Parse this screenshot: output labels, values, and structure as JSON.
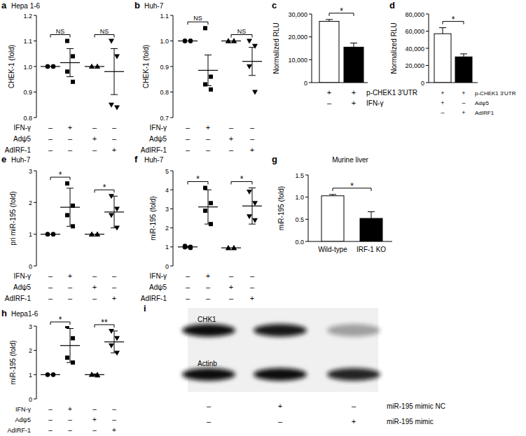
{
  "chart_data": [
    {
      "type": "dot",
      "panel": "a",
      "title": "Hepa 1-6",
      "y_label": "CHEK-1 (fold)",
      "ylim": [
        0.8,
        1.2
      ],
      "yticks": [
        0.8,
        0.9,
        {
          "value": 1,
          "label": "1.0"
        },
        1.1,
        1.2
      ],
      "series": [
        {
          "marker": "circle",
          "values": [
            1,
            1,
            1,
            1
          ],
          "mean": 1,
          "error": 0
        },
        {
          "marker": "square",
          "values": [
            1.1,
            1.04,
            0.98,
            0.94
          ],
          "mean": 1.015,
          "error": 0.055
        },
        {
          "marker": "triangle",
          "values": [
            1,
            1,
            1,
            1
          ],
          "mean": 1,
          "error": 0
        },
        {
          "marker": "triangle-down",
          "values": [
            1.1,
            1.04,
            0.85,
            0.84
          ],
          "mean": 0.98,
          "error": 0.09
        }
      ],
      "comparisons": [
        {
          "groups": [
            0,
            1
          ],
          "label": "NS"
        },
        {
          "groups": [
            2,
            3
          ],
          "label": "NS"
        }
      ],
      "conditions": [
        {
          "name": "IFN-γ",
          "signs": [
            "–",
            "+",
            "–",
            "–"
          ]
        },
        {
          "name": "Adψ5",
          "signs": [
            "–",
            "–",
            "+",
            "–"
          ]
        },
        {
          "name": "AdIRF-1",
          "signs": [
            "–",
            "–",
            "–",
            "+"
          ]
        }
      ]
    },
    {
      "type": "dot",
      "panel": "b",
      "title": "Huh-7",
      "y_label": "CHEK-1 (fold)",
      "ylim": [
        0.7,
        1.1
      ],
      "yticks": [
        0.7,
        0.8,
        0.9,
        {
          "value": 1,
          "label": "1.0"
        },
        1.1
      ],
      "series": [
        {
          "marker": "circle",
          "values": [
            1,
            1,
            1,
            1
          ],
          "mean": 1,
          "error": 0
        },
        {
          "marker": "square",
          "values": [
            1.05,
            0.86,
            0.83,
            0.81
          ],
          "mean": 0.885,
          "error": 0.06
        },
        {
          "marker": "triangle",
          "values": [
            1,
            1,
            1,
            1
          ],
          "mean": 1,
          "error": 0
        },
        {
          "marker": "triangle-down",
          "values": [
            1,
            0.98,
            0.9,
            0.8
          ],
          "mean": 0.92,
          "error": 0.055
        }
      ],
      "comparisons": [
        {
          "groups": [
            0,
            1
          ],
          "label": "NS"
        },
        {
          "groups": [
            2,
            3
          ],
          "label": "NS"
        }
      ],
      "conditions": [
        {
          "name": "IFN-γ",
          "signs": [
            "–",
            "+",
            "–",
            "–"
          ]
        },
        {
          "name": "Adψ5",
          "signs": [
            "–",
            "–",
            "+",
            "–"
          ]
        },
        {
          "name": "AdIRF-1",
          "signs": [
            "–",
            "–",
            "–",
            "+"
          ]
        }
      ]
    },
    {
      "type": "bar",
      "panel": "c",
      "y_label": "Normalized RLU",
      "ylim": [
        0,
        30000
      ],
      "yticks": [
        0,
        {
          "value": 10000,
          "label": "10,000"
        },
        {
          "value": 20000,
          "label": "20,000"
        },
        {
          "value": 30000,
          "label": "30,000"
        }
      ],
      "values": [
        26800,
        15500
      ],
      "errors": [
        800,
        1800
      ],
      "colors": [
        "#ffffff",
        "#000000"
      ],
      "comparisons": [
        {
          "groups": [
            0,
            1
          ],
          "label": "*"
        }
      ],
      "conditions": [
        {
          "name": "p-CHEK1 3'UTR",
          "signs": [
            "+",
            "+"
          ]
        },
        {
          "name": "IFN-γ",
          "signs": [
            "–",
            "+"
          ]
        }
      ]
    },
    {
      "type": "bar",
      "panel": "d",
      "y_label": "Normalized RLU",
      "ylim": [
        0,
        80000
      ],
      "yticks": [
        0,
        {
          "value": 20000,
          "label": "20,000"
        },
        {
          "value": 40000,
          "label": "40,000"
        },
        {
          "value": 60000,
          "label": "60,000"
        },
        {
          "value": 80000,
          "label": "80,000"
        }
      ],
      "values": [
        57000,
        30000
      ],
      "errors": [
        7000,
        3500
      ],
      "colors": [
        "#ffffff",
        "#000000"
      ],
      "comparisons": [
        {
          "groups": [
            0,
            1
          ],
          "label": "*"
        }
      ],
      "conditions": [
        {
          "name": "p-CHEK1 3'UTR",
          "signs": [
            "+",
            "+"
          ]
        },
        {
          "name": "Adψ5",
          "signs": [
            "+",
            "–"
          ]
        },
        {
          "name": "AdIRF1",
          "signs": [
            "–",
            "+"
          ]
        }
      ]
    },
    {
      "type": "dot",
      "panel": "e",
      "title": "Huh-7",
      "y_label": "pri miR-195 (fold)",
      "ylim": [
        0,
        3
      ],
      "yticks": [
        0,
        1,
        2,
        3
      ],
      "series": [
        {
          "marker": "circle",
          "values": [
            1,
            1,
            1,
            1
          ],
          "mean": 1,
          "error": 0
        },
        {
          "marker": "square",
          "values": [
            2.6,
            1.9,
            1.6,
            1.25
          ],
          "mean": 1.85,
          "error": 0.6
        },
        {
          "marker": "triangle",
          "values": [
            1,
            1,
            1,
            1
          ],
          "mean": 1,
          "error": 0
        },
        {
          "marker": "triangle-down",
          "values": [
            2.2,
            1.8,
            1.6,
            1.2
          ],
          "mean": 1.7,
          "error": 0.5
        }
      ],
      "comparisons": [
        {
          "groups": [
            0,
            1
          ],
          "label": "*"
        },
        {
          "groups": [
            2,
            3
          ],
          "label": "*"
        }
      ],
      "conditions": [
        {
          "name": "IFN-γ",
          "signs": [
            "–",
            "+",
            "–",
            "–"
          ]
        },
        {
          "name": "Adψ5",
          "signs": [
            "–",
            "–",
            "+",
            "–"
          ]
        },
        {
          "name": "AdIRF-1",
          "signs": [
            "–",
            "–",
            "–",
            "+"
          ]
        }
      ]
    },
    {
      "type": "dot",
      "panel": "f",
      "title": "Huh-7",
      "y_label": "miR-195 (fold)",
      "ylim": [
        0,
        5
      ],
      "yticks": [
        0,
        1,
        2,
        3,
        4,
        5
      ],
      "series": [
        {
          "marker": "circle",
          "values": [
            1.05,
            1,
            0.98,
            0.95
          ],
          "mean": 1,
          "error": 0.05
        },
        {
          "marker": "square",
          "values": [
            4.1,
            3.3,
            2.9,
            2.2
          ],
          "mean": 3.1,
          "error": 0.9
        },
        {
          "marker": "triangle",
          "values": [
            0.95,
            0.95,
            0.95,
            0.95
          ],
          "mean": 0.95,
          "error": 0
        },
        {
          "marker": "triangle-down",
          "values": [
            3.9,
            3.3,
            2.6,
            2.4
          ],
          "mean": 3.15,
          "error": 0.95
        }
      ],
      "comparisons": [
        {
          "groups": [
            0,
            1
          ],
          "label": "*"
        },
        {
          "groups": [
            2,
            3
          ],
          "label": "*"
        }
      ],
      "conditions": [
        {
          "name": "IFN-γ",
          "signs": [
            "–",
            "+",
            "–",
            "–"
          ]
        },
        {
          "name": "Adψ5",
          "signs": [
            "–",
            "–",
            "+",
            "–"
          ]
        },
        {
          "name": "AdIRF-1",
          "signs": [
            "–",
            "–",
            "–",
            "+"
          ]
        }
      ]
    },
    {
      "type": "bar",
      "panel": "g",
      "title": "Murine liver",
      "y_label": "miR-195 (fold)",
      "ylim": [
        0,
        1.5
      ],
      "yticks": [
        {
          "value": 0,
          "label": "0.0"
        },
        0.5,
        {
          "value": 1,
          "label": "1.0"
        },
        1.5
      ],
      "categories": [
        "Wild-type",
        "IRF-1 KO"
      ],
      "values": [
        1.03,
        0.52
      ],
      "errors": [
        0.03,
        0.15
      ],
      "colors": [
        "#ffffff",
        "#000000"
      ],
      "comparisons": [
        {
          "groups": [
            0,
            1
          ],
          "label": "*"
        }
      ]
    },
    {
      "type": "dot",
      "panel": "h",
      "title": "Hepa1-6",
      "y_label": "miR-195 (fold)",
      "ylim": [
        0,
        3
      ],
      "yticks": [
        0,
        1,
        2,
        3
      ],
      "series": [
        {
          "marker": "circle",
          "values": [
            1,
            1,
            1,
            1
          ],
          "mean": 1,
          "error": 0
        },
        {
          "marker": "square",
          "values": [
            3,
            2.5,
            1.7,
            1.5
          ],
          "mean": 2.2,
          "error": 0.7
        },
        {
          "marker": "triangle",
          "values": [
            1,
            1,
            1,
            0.97
          ],
          "mean": 1,
          "error": 0.03
        },
        {
          "marker": "triangle-down",
          "values": [
            2.8,
            2.5,
            2.2,
            1.9
          ],
          "mean": 2.35,
          "error": 0.45
        }
      ],
      "comparisons": [
        {
          "groups": [
            0,
            1
          ],
          "label": "*"
        },
        {
          "groups": [
            2,
            3
          ],
          "label": "**"
        }
      ],
      "conditions": [
        {
          "name": "IFN-γ",
          "signs": [
            "–",
            "+",
            "–",
            "–"
          ]
        },
        {
          "name": "Adψ5",
          "signs": [
            "–",
            "–",
            "+",
            "–"
          ]
        },
        {
          "name": "AdIRF-1",
          "signs": [
            "–",
            "–",
            "–",
            "+"
          ]
        }
      ]
    },
    {
      "type": "blot",
      "panel": "i",
      "bands": [
        {
          "name": "CHK1",
          "intensity": [
            1,
            0.95,
            0.35
          ]
        },
        {
          "name": "Actinb",
          "intensity": [
            1,
            1,
            0.9
          ]
        }
      ],
      "conditions": [
        {
          "name": "miR-195 mimic NC",
          "signs": [
            "–",
            "+",
            "–"
          ]
        },
        {
          "name": "miR-195 mimic",
          "signs": [
            "–",
            "–",
            "+"
          ]
        }
      ]
    }
  ]
}
